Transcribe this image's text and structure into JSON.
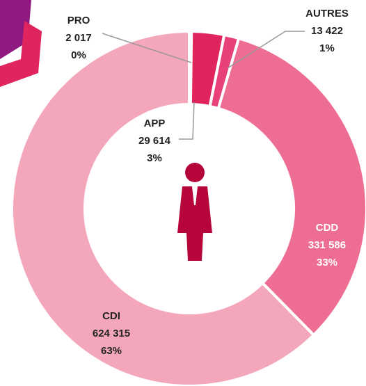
{
  "chart_data": {
    "type": "donut",
    "categories": [
      "PRO",
      "APP",
      "AUTRES",
      "CDD",
      "CDI"
    ],
    "values": [
      2017,
      29614,
      13422,
      331586,
      624315
    ],
    "value_labels": [
      "2 017",
      "29 614",
      "13 422",
      "331 586",
      "624 315"
    ],
    "percents": [
      0,
      3,
      1,
      33,
      63
    ],
    "percent_labels": [
      "0%",
      "3%",
      "1%",
      "33%",
      "63%"
    ],
    "colors": [
      "#d81b60",
      "#e0245e",
      "#e8417a",
      "#ee6d92",
      "#f4a6bb"
    ]
  }
}
